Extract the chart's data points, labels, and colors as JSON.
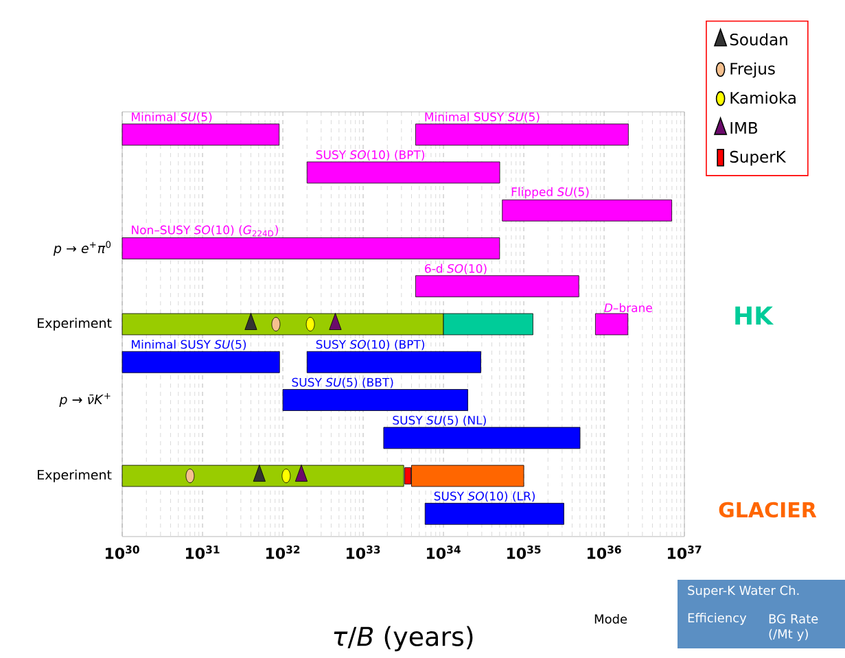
{
  "chart_data": {
    "type": "bar",
    "orientation": "horizontal",
    "log": "x",
    "grid": "x",
    "legend": "top right",
    "xlabel": "*τ*/*B* (years)",
    "xlim": [
      1e+30,
      1e+37
    ],
    "xticks": [
      {
        "value": 1e+30,
        "label": "10$^{30}$"
      },
      {
        "value": 1e+31,
        "label": "10$^{31}$"
      },
      {
        "value": 1e+32,
        "label": "10$^{32}$"
      },
      {
        "value": 1e+33,
        "label": "10$^{33}$"
      },
      {
        "value": 1e+34,
        "label": "10$^{34}$"
      },
      {
        "value": 1e+35,
        "label": "10$^{35}$"
      },
      {
        "value": 1e+36,
        "label": "10$^{36}$"
      },
      {
        "value": 1e+37,
        "label": "10$^{37}$"
      }
    ],
    "categories": [
      null,
      null,
      null,
      "*p* → *e*$^{+}$*π*$^{0}$",
      null,
      "Experiment",
      null,
      "*p* → *ν̄K*$^{+}$",
      null,
      "Experiment",
      null
    ],
    "series": [
      {
        "name": "Minimal *SU*(5)",
        "color": "#ff00ff",
        "base": [
          1e+30,
          null,
          null,
          null,
          null,
          null,
          null,
          null,
          null,
          null,
          null
        ],
        "values": [
          8.9e+31,
          null,
          null,
          null,
          null,
          null,
          null,
          null,
          null,
          null,
          null
        ]
      },
      {
        "name": "Minimal SUSY *SU*(5)",
        "color": "#ff00ff",
        "base": [
          4.5e+33,
          null,
          null,
          null,
          null,
          null,
          null,
          null,
          null,
          null,
          null
        ],
        "values": [
          2e+36,
          null,
          null,
          null,
          null,
          null,
          null,
          null,
          null,
          null,
          null
        ]
      },
      {
        "name": "SUSY *SO*(10) (BPT)",
        "color": "#ff00ff",
        "base": [
          null,
          2e+32,
          null,
          null,
          null,
          null,
          null,
          null,
          null,
          null,
          null
        ],
        "values": [
          null,
          5e+34,
          null,
          null,
          null,
          null,
          null,
          null,
          null,
          null,
          null
        ]
      },
      {
        "name": "Flipped *SU*(5)",
        "color": "#ff00ff",
        "base": [
          null,
          null,
          5.4e+34,
          null,
          null,
          null,
          null,
          null,
          null,
          null,
          null
        ],
        "values": [
          null,
          null,
          6.9e+36,
          null,
          null,
          null,
          null,
          null,
          null,
          null,
          null
        ]
      },
      {
        "name": "Non–SUSY *SO*(10) (*G*$_{224D}$)",
        "color": "#ff00ff",
        "base": [
          null,
          null,
          null,
          1e+30,
          null,
          null,
          null,
          null,
          null,
          null,
          null
        ],
        "values": [
          null,
          null,
          null,
          5e+34,
          null,
          null,
          null,
          null,
          null,
          null,
          null
        ]
      },
      {
        "name": "6-d *SO*(10)",
        "color": "#ff00ff",
        "base": [
          null,
          null,
          null,
          null,
          4.5e+33,
          null,
          null,
          null,
          null,
          null,
          null
        ],
        "values": [
          null,
          null,
          null,
          null,
          4.8e+35,
          null,
          null,
          null,
          null,
          null,
          null
        ]
      },
      {
        "name": "*D*–brane",
        "color": "#ff00ff",
        "base": [
          null,
          null,
          null,
          null,
          null,
          7.8e+35,
          null,
          null,
          null,
          null,
          null
        ],
        "values": [
          null,
          null,
          null,
          null,
          null,
          1.2e+36,
          null,
          null,
          null,
          null,
          null
        ]
      },
      {
        "color": "#99cc00",
        "base": [
          null,
          null,
          null,
          null,
          null,
          1e+30,
          null,
          null,
          null,
          1e+30,
          null
        ],
        "values": [
          null,
          null,
          null,
          null,
          null,
          1e+34,
          null,
          null,
          null,
          3.2e+33,
          null
        ]
      },
      {
        "color": "#00cc99",
        "base": [
          null,
          null,
          null,
          null,
          null,
          1e+34,
          null,
          null,
          null,
          null,
          null
        ],
        "values": [
          null,
          null,
          null,
          null,
          null,
          1.2e+35,
          null,
          null,
          null,
          null,
          null
        ]
      },
      {
        "color": "#ff6600",
        "base": [
          null,
          null,
          null,
          null,
          null,
          null,
          null,
          null,
          null,
          4e+33,
          null
        ],
        "values": [
          null,
          null,
          null,
          null,
          null,
          null,
          null,
          null,
          null,
          9.6e+34,
          null
        ]
      },
      {
        "name": "Minimal SUSY *SU*(5)",
        "color": "#0000ff",
        "base": [
          null,
          null,
          null,
          null,
          null,
          null,
          1e+30,
          null,
          null,
          null,
          null
        ],
        "values": [
          null,
          null,
          null,
          null,
          null,
          null,
          9e+31,
          null,
          null,
          null,
          null
        ]
      },
      {
        "name": "SUSY *SO*(10) (BPT)",
        "color": "#0000ff",
        "base": [
          null,
          null,
          null,
          null,
          null,
          null,
          2e+32,
          null,
          null,
          null,
          null
        ],
        "values": [
          null,
          null,
          null,
          null,
          null,
          null,
          2.9e+34,
          null,
          null,
          null,
          null
        ]
      },
      {
        "name": "SUSY *SU*(5) (BBT)",
        "color": "#0000ff",
        "base": [
          null,
          null,
          null,
          null,
          null,
          null,
          null,
          1e+32,
          null,
          null,
          null
        ],
        "values": [
          null,
          null,
          null,
          null,
          null,
          null,
          null,
          2e+34,
          null,
          null,
          null
        ]
      },
      {
        "name": "SUSY *SU*(5) (NL)",
        "color": "#0000ff",
        "base": [
          null,
          null,
          null,
          null,
          null,
          null,
          null,
          null,
          1.8e+33,
          null,
          null
        ],
        "values": [
          null,
          null,
          null,
          null,
          null,
          null,
          null,
          null,
          5e+35,
          null,
          null
        ]
      },
      {
        "name": "SUSY *SO*(10) (LR)",
        "color": "#0000ff",
        "base": [
          null,
          null,
          null,
          null,
          null,
          null,
          null,
          null,
          null,
          null,
          5.9e+33
        ],
        "values": [
          null,
          null,
          null,
          null,
          null,
          null,
          null,
          null,
          null,
          null,
          3.1e+35
        ]
      },
      {
        "name": "Soudan",
        "type": "scatter",
        "marker": "triangle",
        "color": "#333333",
        "values": [
          null,
          null,
          null,
          null,
          null,
          4e+31,
          null,
          null,
          null,
          5.1e+31,
          null
        ]
      },
      {
        "name": "Frejus",
        "type": "scatter",
        "marker": "circle",
        "color": "#f5c08f",
        "values": [
          null,
          null,
          null,
          null,
          null,
          8.2e+31,
          null,
          null,
          null,
          7e+30,
          null
        ]
      },
      {
        "name": "Kamioka",
        "type": "scatter",
        "marker": "circle",
        "color": "#ffff00",
        "values": [
          null,
          null,
          null,
          null,
          null,
          2.2e+32,
          null,
          null,
          null,
          1.1e+32,
          null
        ]
      },
      {
        "name": "IMB",
        "type": "scatter",
        "marker": "triangle",
        "color": "#6b0a6b",
        "values": [
          null,
          null,
          null,
          null,
          null,
          4.5e+32,
          null,
          null,
          null,
          1.7e+32,
          null
        ]
      },
      {
        "name": "SuperK",
        "type": "scatter",
        "marker": "square",
        "color": "#ff0000",
        "values": [
          null,
          null,
          null,
          null,
          null,
          null,
          null,
          null,
          null,
          3.6e+33,
          null
        ]
      }
    ],
    "annotations": [
      "HK",
      "GLACIER",
      "Super-K Water Ch.",
      "Efficiency",
      "BG Rate (/Mt y)",
      "Mode"
    ]
  }
}
